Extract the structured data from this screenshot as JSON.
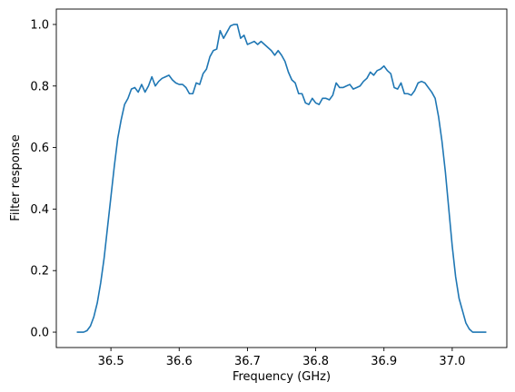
{
  "chart_data": {
    "type": "line",
    "title": "",
    "xlabel": "Frequency (GHz)",
    "ylabel": "Filter response",
    "xlim": [
      36.42,
      37.08
    ],
    "ylim": [
      -0.05,
      1.05
    ],
    "grid": false,
    "xticks": [
      36.5,
      36.6,
      36.7,
      36.8,
      36.9,
      37.0
    ],
    "xtick_labels": [
      "36.5",
      "36.6",
      "36.7",
      "36.8",
      "36.9",
      "37.0"
    ],
    "yticks": [
      0.0,
      0.2,
      0.4,
      0.6,
      0.8,
      1.0
    ],
    "ytick_labels": [
      "0.0",
      "0.2",
      "0.4",
      "0.6",
      "0.8",
      "1.0"
    ],
    "series": [
      {
        "color": "#1f77b4",
        "x": [
          36.45,
          36.455,
          36.46,
          36.465,
          36.47,
          36.475,
          36.48,
          36.485,
          36.49,
          36.495,
          36.5,
          36.505,
          36.51,
          36.515,
          36.52,
          36.525,
          36.53,
          36.535,
          36.54,
          36.545,
          36.55,
          36.555,
          36.56,
          36.565,
          36.57,
          36.575,
          36.58,
          36.585,
          36.59,
          36.595,
          36.6,
          36.605,
          36.61,
          36.615,
          36.62,
          36.625,
          36.63,
          36.635,
          36.64,
          36.645,
          36.65,
          36.655,
          36.66,
          36.665,
          36.67,
          36.675,
          36.68,
          36.685,
          36.69,
          36.695,
          36.7,
          36.705,
          36.71,
          36.715,
          36.72,
          36.725,
          36.73,
          36.735,
          36.74,
          36.745,
          36.75,
          36.755,
          36.76,
          36.765,
          36.77,
          36.775,
          36.78,
          36.785,
          36.79,
          36.795,
          36.8,
          36.805,
          36.81,
          36.815,
          36.82,
          36.825,
          36.83,
          36.835,
          36.84,
          36.845,
          36.85,
          36.855,
          36.86,
          36.865,
          36.87,
          36.875,
          36.88,
          36.885,
          36.89,
          36.895,
          36.9,
          36.905,
          36.91,
          36.915,
          36.92,
          36.925,
          36.93,
          36.935,
          36.94,
          36.945,
          36.95,
          36.955,
          36.96,
          36.965,
          36.97,
          36.975,
          36.98,
          36.985,
          36.99,
          36.995,
          37.0,
          37.005,
          37.01,
          37.015,
          37.02,
          37.025,
          37.03,
          37.035,
          37.04,
          37.045,
          37.05
        ],
        "y": [
          0.0,
          0.0,
          0.0,
          0.005,
          0.02,
          0.05,
          0.095,
          0.16,
          0.24,
          0.34,
          0.44,
          0.54,
          0.63,
          0.69,
          0.74,
          0.76,
          0.79,
          0.795,
          0.78,
          0.805,
          0.78,
          0.8,
          0.83,
          0.8,
          0.815,
          0.825,
          0.83,
          0.835,
          0.82,
          0.81,
          0.805,
          0.805,
          0.795,
          0.775,
          0.775,
          0.81,
          0.805,
          0.84,
          0.855,
          0.895,
          0.915,
          0.92,
          0.98,
          0.955,
          0.975,
          0.995,
          1.0,
          1.0,
          0.955,
          0.965,
          0.935,
          0.94,
          0.945,
          0.935,
          0.945,
          0.935,
          0.925,
          0.915,
          0.9,
          0.915,
          0.9,
          0.88,
          0.845,
          0.82,
          0.81,
          0.775,
          0.775,
          0.745,
          0.74,
          0.76,
          0.745,
          0.74,
          0.76,
          0.76,
          0.755,
          0.77,
          0.81,
          0.795,
          0.795,
          0.8,
          0.805,
          0.79,
          0.795,
          0.8,
          0.815,
          0.825,
          0.845,
          0.835,
          0.85,
          0.855,
          0.865,
          0.85,
          0.84,
          0.795,
          0.79,
          0.81,
          0.775,
          0.775,
          0.77,
          0.785,
          0.81,
          0.815,
          0.81,
          0.795,
          0.78,
          0.76,
          0.7,
          0.62,
          0.52,
          0.4,
          0.28,
          0.18,
          0.11,
          0.07,
          0.03,
          0.01,
          0.0,
          0.0,
          0.0,
          0.0,
          0.0
        ]
      }
    ]
  }
}
